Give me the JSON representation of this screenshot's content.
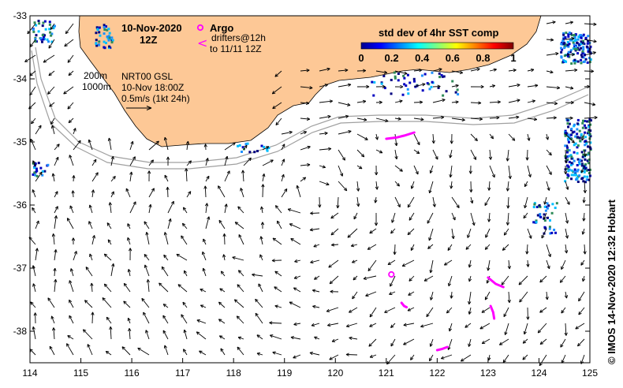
{
  "date_label": "10-Nov-2020",
  "time_label": "12Z",
  "legend": {
    "argo_label": "Argo",
    "drifters_line1": "drifters@12h",
    "drifters_line2": "to 11/11 12Z",
    "iso_200": "200m",
    "iso_1000": "1000m",
    "product_line1": "NRT00 GSL",
    "product_line2": "10-Nov 18:00Z",
    "scale_label": "0.5m/s (1kt 24h)"
  },
  "colorbar": {
    "title": "std dev of 4hr SST comp",
    "ticks": [
      "0",
      "0.2",
      "0.4",
      "0.6",
      "0.8",
      "1"
    ]
  },
  "x_ticks": [
    "114",
    "115",
    "116",
    "117",
    "118",
    "119",
    "120",
    "121",
    "122",
    "123",
    "124",
    "125"
  ],
  "y_ticks": [
    "-33",
    "-34",
    "-35",
    "-36",
    "-37",
    "-38"
  ],
  "credit": "© IMOS 14-Nov-2020 12:32 Hobart",
  "colors": {
    "land": "#fdc896",
    "isobath": "#a0a0a0",
    "drifter": "#ff00ff",
    "sst_low": "#000080",
    "sst_mid": "#1e90ff"
  },
  "chart_data": {
    "type": "map",
    "lon_range": [
      114,
      125
    ],
    "lat_range": [
      -38.5,
      -33
    ],
    "argo_floats": [
      {
        "lon": 121.1,
        "lat": -37.1
      }
    ],
    "drifter_tracks": [
      {
        "lon": [
          121.0,
          121.2,
          121.35,
          121.55
        ],
        "lat": [
          -34.95,
          -34.93,
          -34.9,
          -34.85
        ]
      },
      {
        "lon": [
          121.3,
          121.35,
          121.4
        ],
        "lat": [
          -37.55,
          -37.6,
          -37.62
        ]
      },
      {
        "lon": [
          122.0,
          122.1,
          122.2
        ],
        "lat": [
          -38.3,
          -38.28,
          -38.25
        ]
      },
      {
        "lon": [
          123.0,
          123.15,
          123.3
        ],
        "lat": [
          -37.15,
          -37.25,
          -37.3
        ]
      },
      {
        "lon": [
          123.05,
          123.1,
          123.12
        ],
        "lat": [
          -37.6,
          -37.7,
          -37.8
        ]
      }
    ]
  }
}
